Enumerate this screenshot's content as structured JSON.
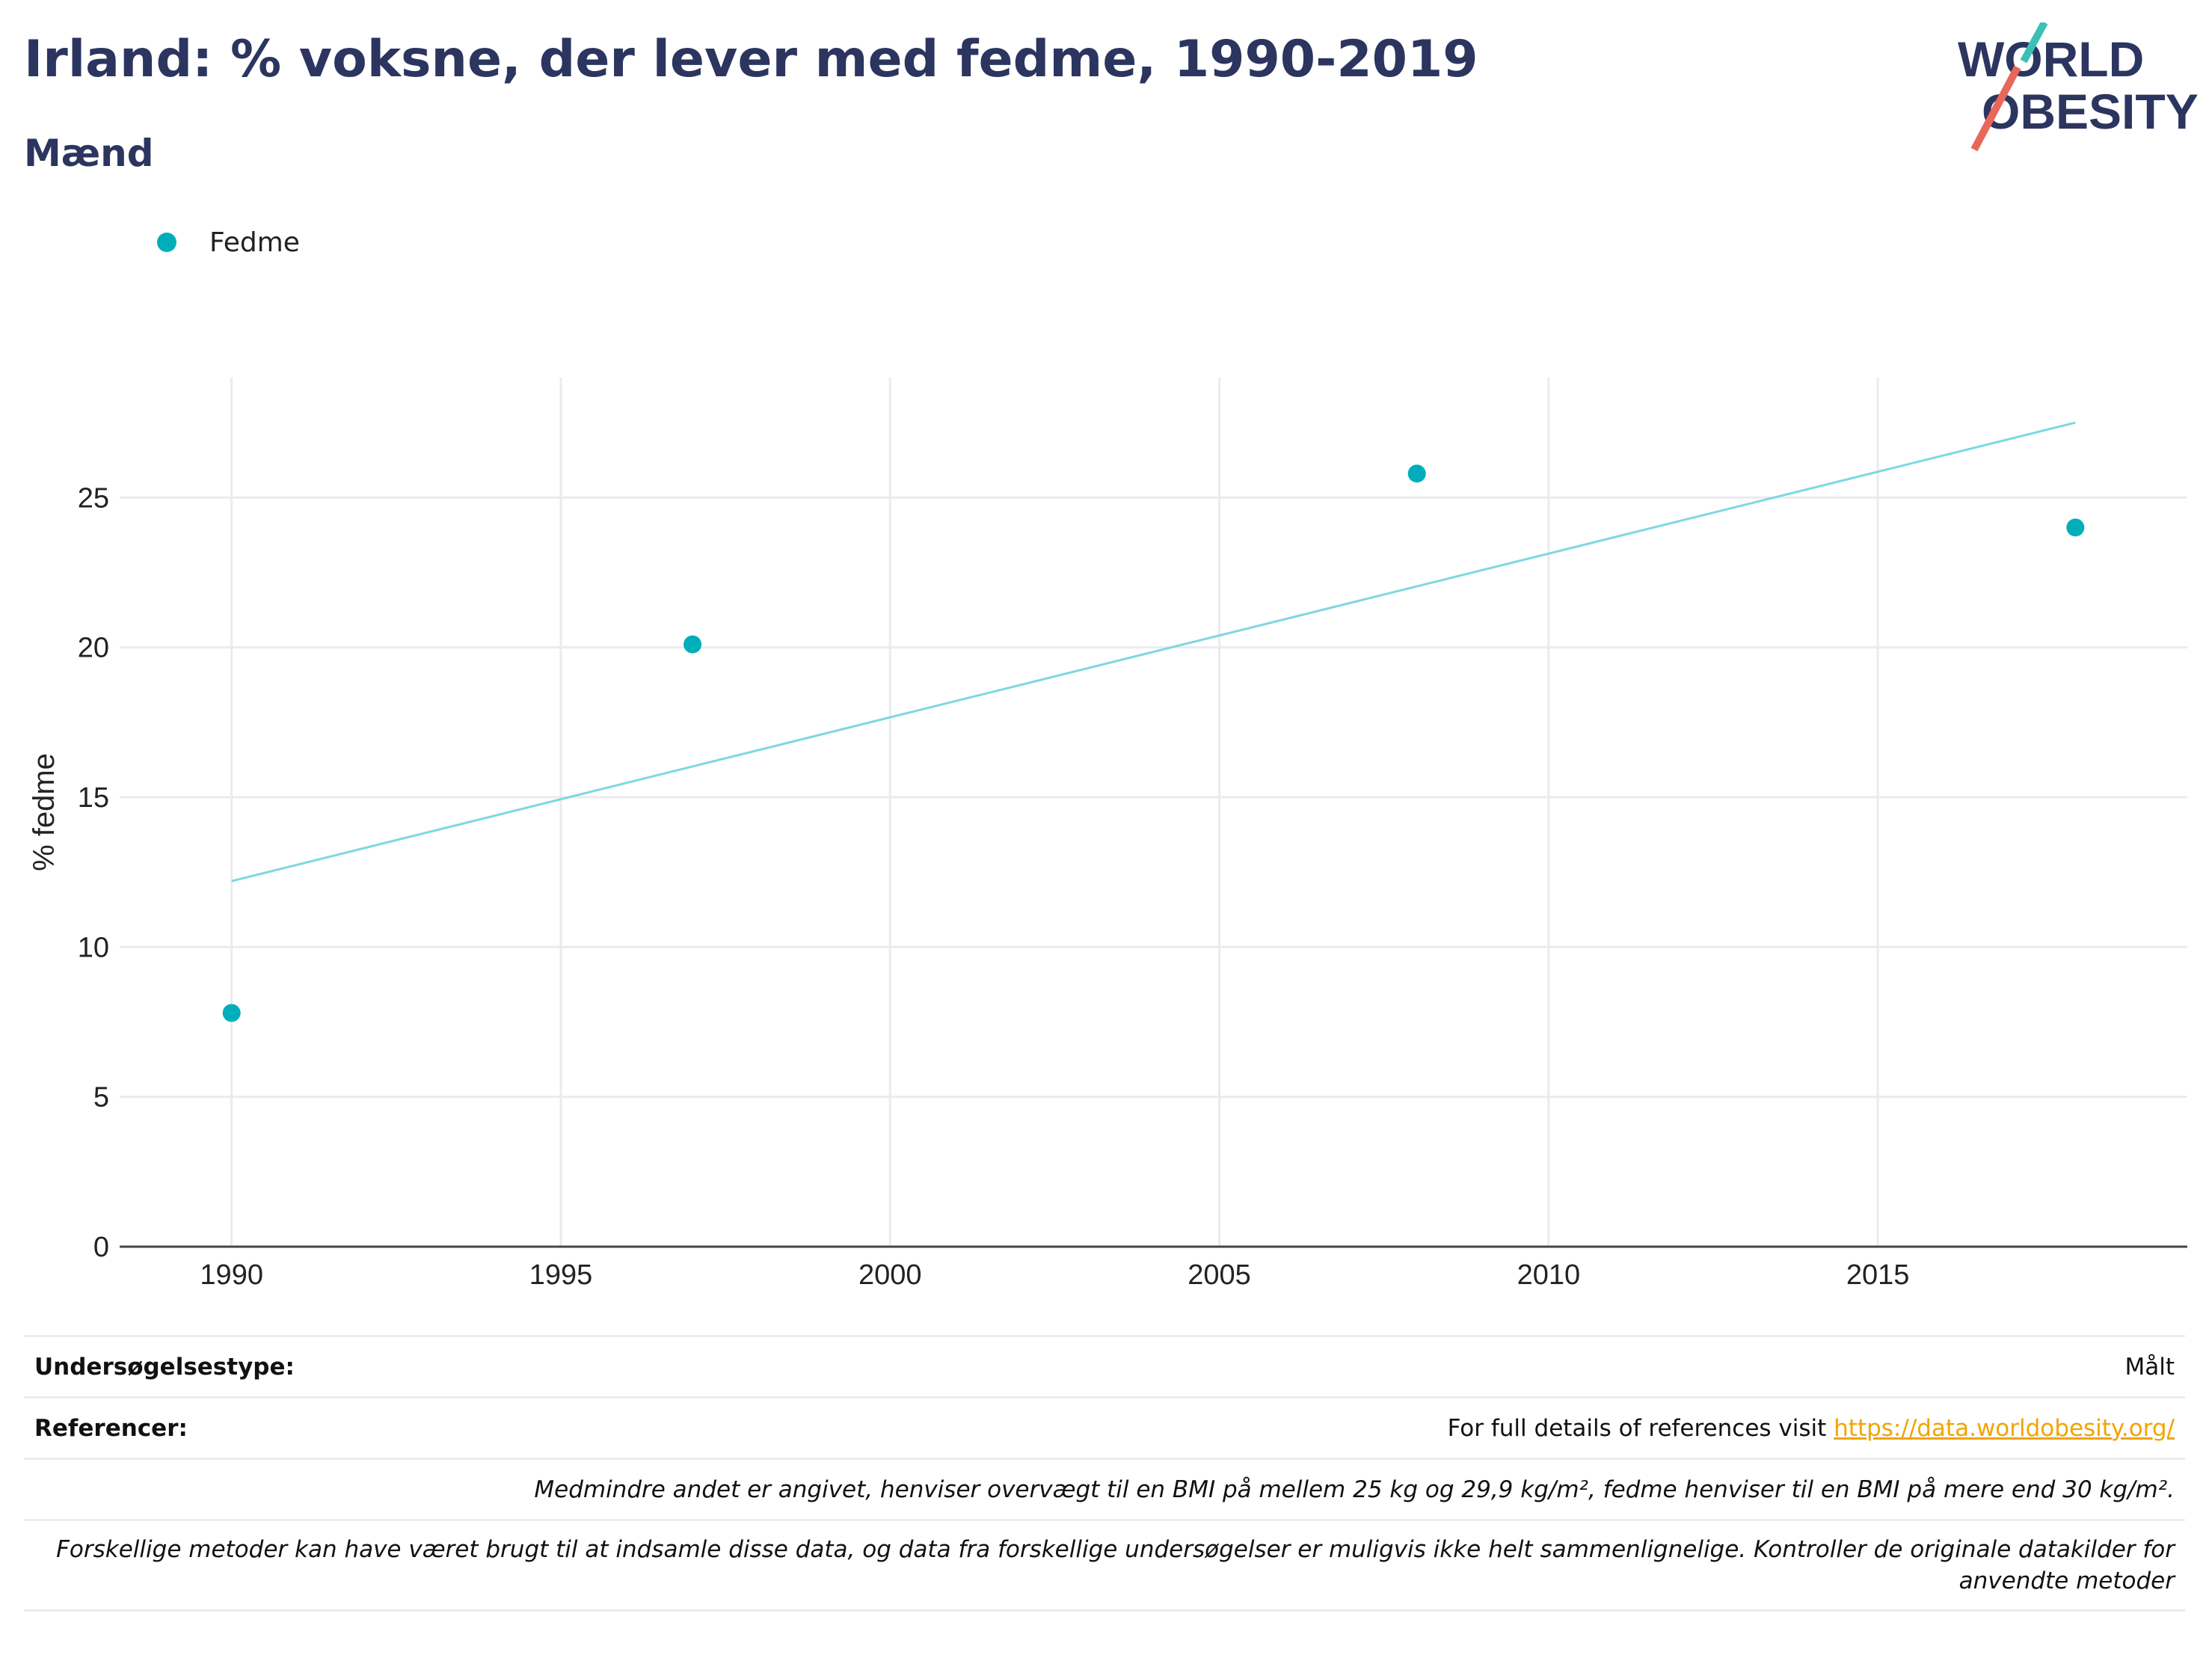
{
  "header": {
    "title": "Irland: % voksne, der lever med fedme, 1990-2019",
    "subtitle": "Mænd",
    "logo_line1": "WORLD",
    "logo_line2": "OBESITY"
  },
  "legend": {
    "label": "Fedme",
    "color": "#00aebb"
  },
  "chart_data": {
    "type": "scatter",
    "title": "Irland: % voksne, der lever med fedme, 1990-2019",
    "subtitle": "Mænd",
    "xlabel": "",
    "ylabel": "% fedme",
    "xlim": [
      1988.3,
      2019.7
    ],
    "ylim": [
      0,
      29
    ],
    "x_ticks": [
      1990,
      1995,
      2000,
      2005,
      2010,
      2015
    ],
    "y_ticks": [
      0,
      5,
      10,
      15,
      20,
      25
    ],
    "grid": true,
    "legend_position": "top-left",
    "series": [
      {
        "name": "Fedme",
        "color": "#00aebb",
        "x": [
          1990,
          1997,
          2008,
          2018
        ],
        "y": [
          7.8,
          20.1,
          25.8,
          24.0
        ]
      }
    ],
    "trendline": {
      "color": "#7dd8df",
      "x": [
        1990,
        2018
      ],
      "y": [
        12.2,
        27.5
      ]
    }
  },
  "footer": {
    "survey_type_label": "Undersøgelsestype:",
    "survey_type_value": "Målt",
    "references_label": "Referencer:",
    "references_text": "For full details of references visit ",
    "references_link": "https://data.worldobesity.org/",
    "note_bmi": "Medmindre andet er angivet, henviser overvægt til en BMI på mellem 25 kg og 29,9 kg/m², fedme henviser til en BMI på mere end 30 kg/m².",
    "note_methods_1": "Forskellige metoder kan have været brugt til at indsamle disse data, og data fra forskellige undersøgelser er muligvis ikke helt sammenlignelige. Kontroller de originale datakilder for",
    "note_methods_2": "anvendte metoder"
  }
}
